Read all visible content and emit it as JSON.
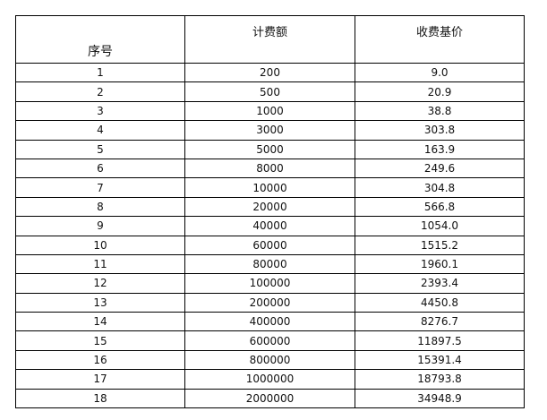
{
  "table": {
    "headers": [
      "序号",
      "计费额",
      "收费基价"
    ],
    "rows": [
      [
        "1",
        "200",
        "9.0"
      ],
      [
        "2",
        "500",
        "20.9"
      ],
      [
        "3",
        "1000",
        "38.8"
      ],
      [
        "4",
        "3000",
        "303.8"
      ],
      [
        "5",
        "5000",
        "163.9"
      ],
      [
        "6",
        "8000",
        "249.6"
      ],
      [
        "7",
        "10000",
        "304.8"
      ],
      [
        "8",
        "20000",
        "566.8"
      ],
      [
        "9",
        "40000",
        "1054.0"
      ],
      [
        "10",
        "60000",
        "1515.2"
      ],
      [
        "11",
        "80000",
        "1960.1"
      ],
      [
        "12",
        "100000",
        "2393.4"
      ],
      [
        "13",
        "200000",
        "4450.8"
      ],
      [
        "14",
        "400000",
        "8276.7"
      ],
      [
        "15",
        "600000",
        "11897.5"
      ],
      [
        "16",
        "800000",
        "15391.4"
      ],
      [
        "17",
        "1000000",
        "18793.8"
      ],
      [
        "18",
        "2000000",
        "34948.9"
      ]
    ]
  }
}
